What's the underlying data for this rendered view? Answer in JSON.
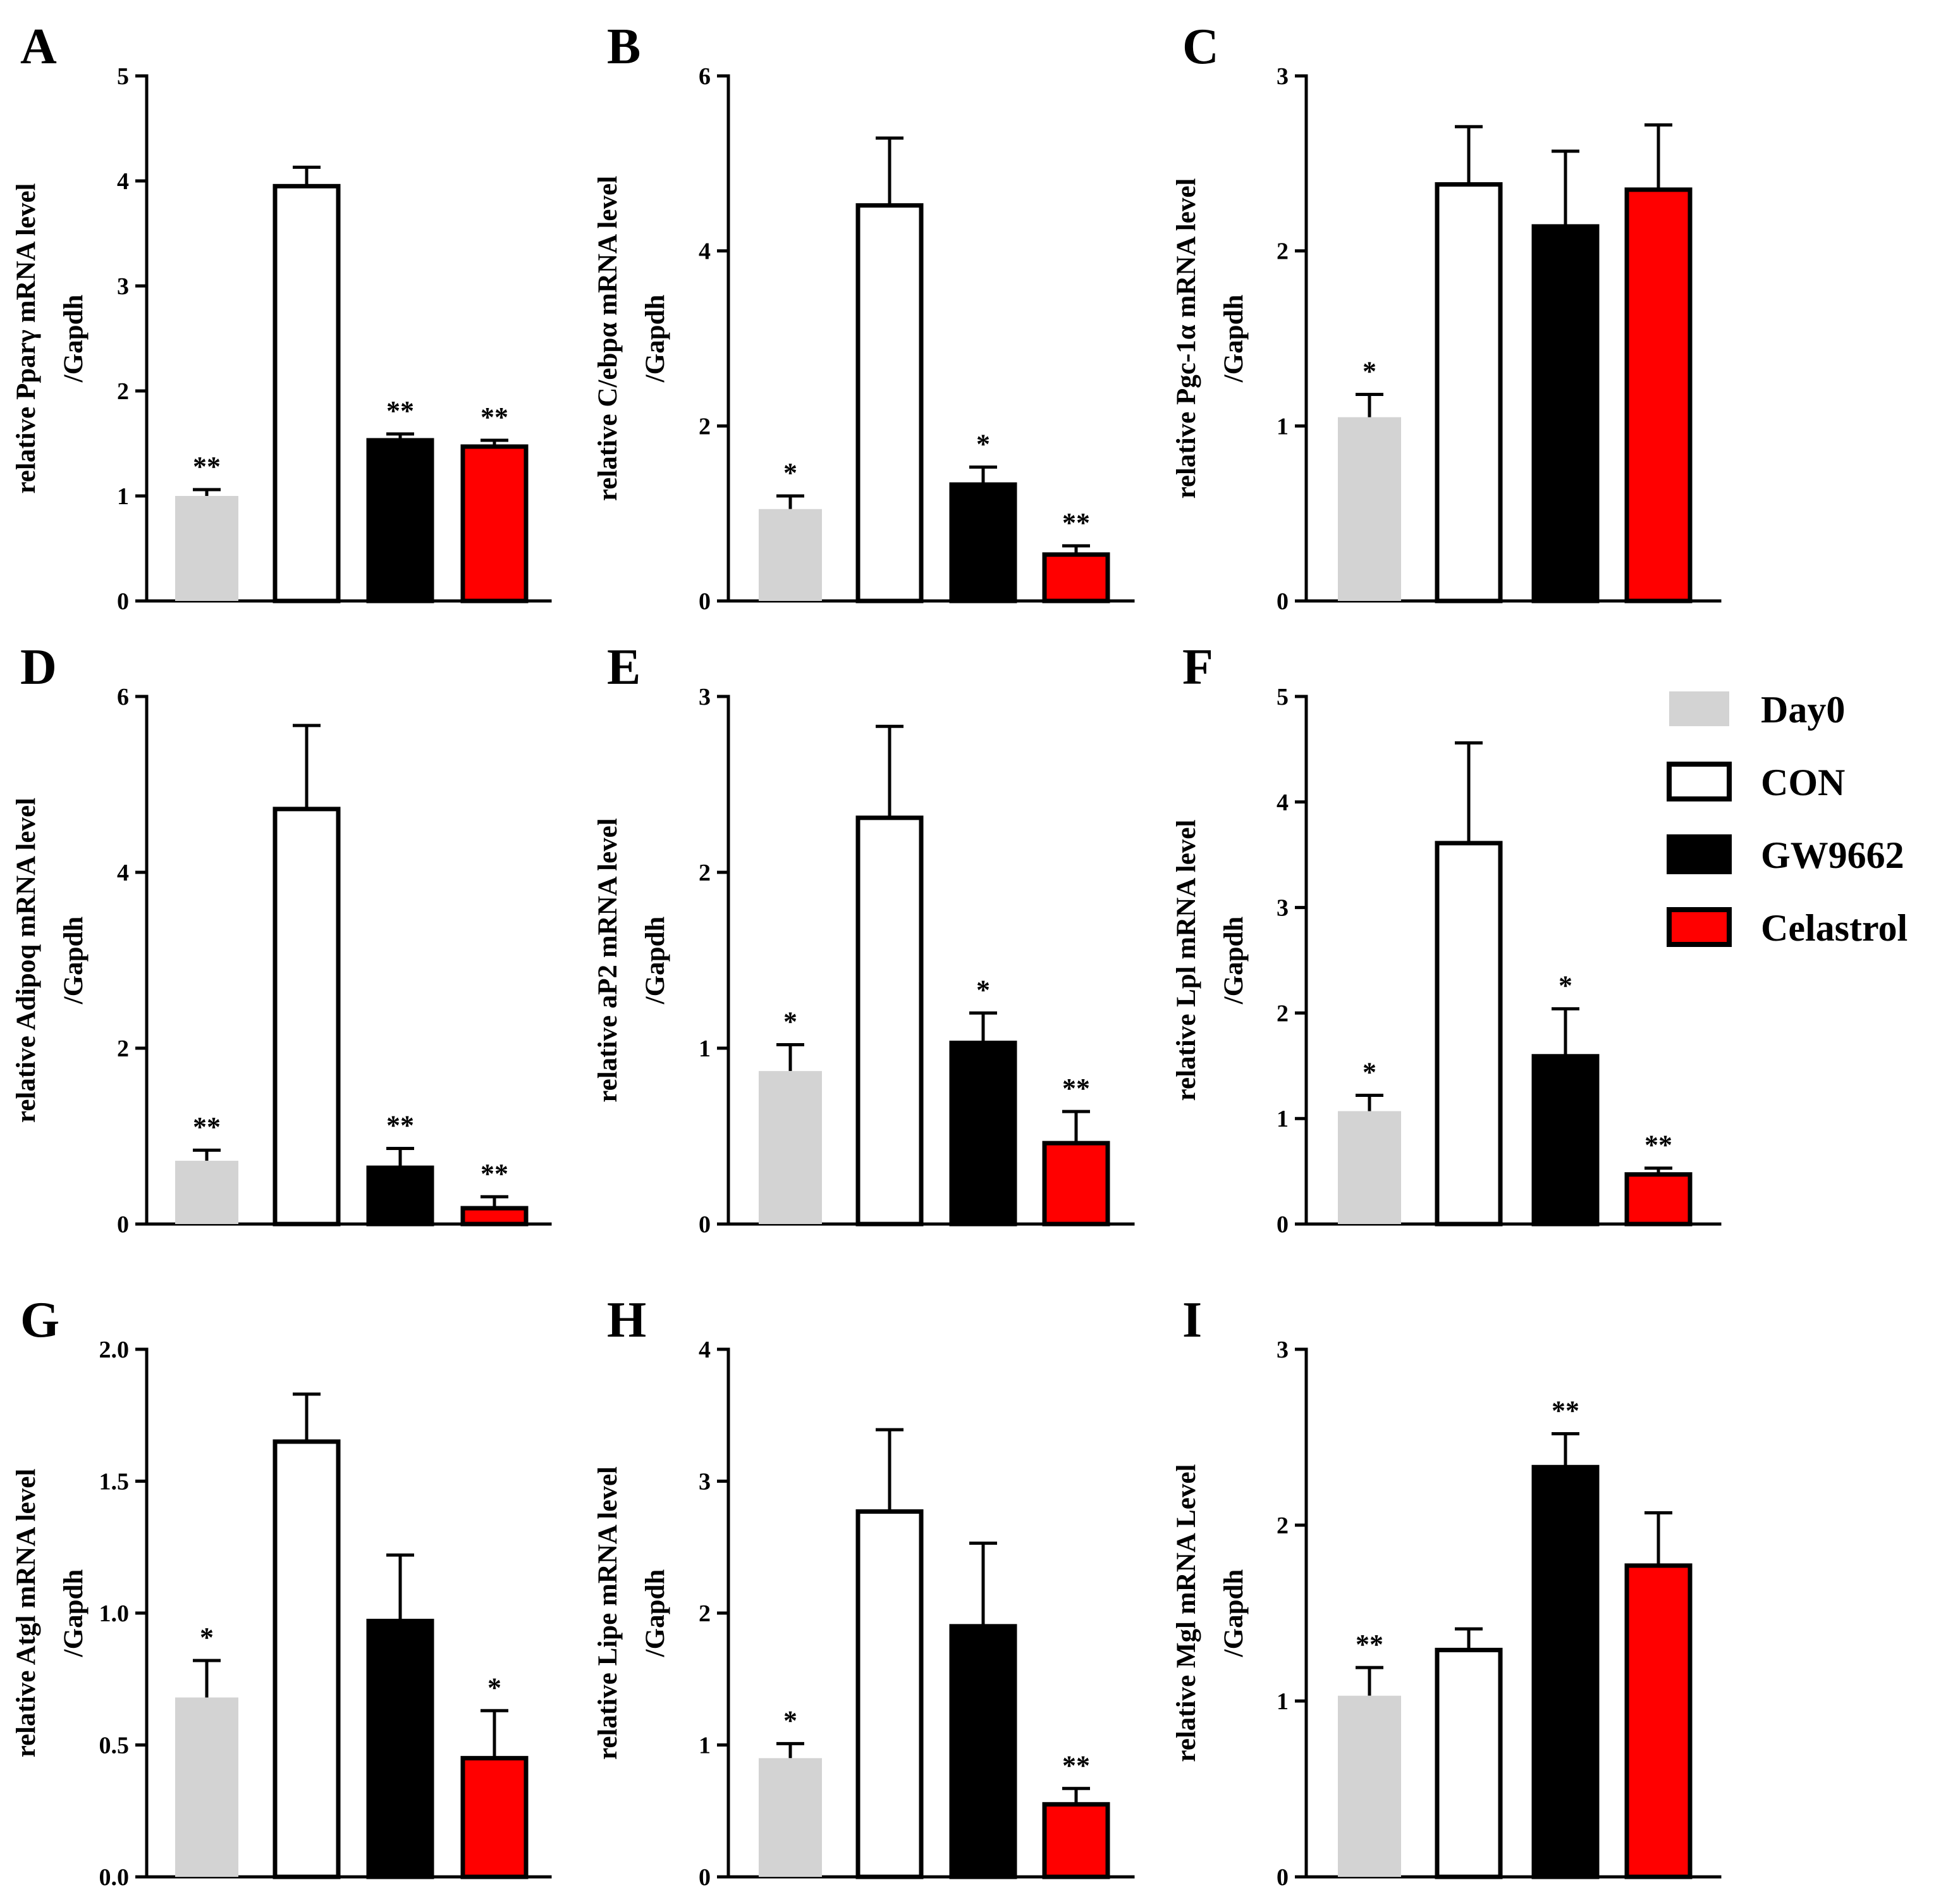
{
  "figure": {
    "legend": [
      {
        "label": "Day0",
        "color": "#d3d3d3"
      },
      {
        "label": "CON",
        "color": "#ffffff"
      },
      {
        "label": "GW9662",
        "color": "#000000"
      },
      {
        "label": "Celastrol",
        "color": "#ff0000"
      }
    ]
  },
  "chart_data": [
    {
      "panel": "A",
      "type": "bar",
      "ylabel_lines": [
        "relative Pparγ mRNA level",
        "/Gapdh"
      ],
      "categories": [
        "Day0",
        "CON",
        "GW9662",
        "Celastrol"
      ],
      "values": [
        1.0,
        3.95,
        1.53,
        1.47
      ],
      "errors": [
        0.06,
        0.18,
        0.06,
        0.06
      ],
      "significance": [
        "**",
        "",
        "**",
        "**"
      ],
      "ylim": [
        0,
        5
      ],
      "ticks": [
        0,
        1,
        2,
        3,
        4,
        5
      ],
      "tick_labels": [
        "0",
        "1",
        "2",
        "3",
        "4",
        "5"
      ]
    },
    {
      "panel": "B",
      "type": "bar",
      "ylabel_lines": [
        "relative C/ebpα mRNA level",
        "/Gapdh"
      ],
      "categories": [
        "Day0",
        "CON",
        "GW9662",
        "Celastrol"
      ],
      "values": [
        1.05,
        4.52,
        1.33,
        0.53
      ],
      "errors": [
        0.15,
        0.77,
        0.2,
        0.1
      ],
      "significance": [
        "*",
        "",
        "*",
        "**"
      ],
      "ylim": [
        0,
        6
      ],
      "ticks": [
        0,
        2,
        4,
        6
      ],
      "tick_labels": [
        "0",
        "2",
        "4",
        "6"
      ]
    },
    {
      "panel": "C",
      "type": "bar",
      "ylabel_lines": [
        "relative Pgc-1α mRNA level",
        "/Gapdh"
      ],
      "categories": [
        "Day0",
        "CON",
        "GW9662",
        "Celastrol"
      ],
      "values": [
        1.05,
        2.38,
        2.14,
        2.35
      ],
      "errors": [
        0.13,
        0.33,
        0.43,
        0.37
      ],
      "significance": [
        "*",
        "",
        "",
        ""
      ],
      "ylim": [
        0,
        3
      ],
      "ticks": [
        0,
        1,
        2,
        3
      ],
      "tick_labels": [
        "0",
        "1",
        "2",
        "3"
      ]
    },
    {
      "panel": "D",
      "type": "bar",
      "ylabel_lines": [
        "relative Adipoq mRNA level",
        "/Gapdh"
      ],
      "categories": [
        "Day0",
        "CON",
        "GW9662",
        "Celastrol"
      ],
      "values": [
        0.72,
        4.72,
        0.64,
        0.18
      ],
      "errors": [
        0.12,
        0.95,
        0.22,
        0.13
      ],
      "significance": [
        "**",
        "",
        "**",
        "**"
      ],
      "ylim": [
        0,
        6
      ],
      "ticks": [
        0,
        2,
        4,
        6
      ],
      "tick_labels": [
        "0",
        "2",
        "4",
        "6"
      ]
    },
    {
      "panel": "E",
      "type": "bar",
      "ylabel_lines": [
        "relative aP2 mRNA level",
        "/Gapdh"
      ],
      "categories": [
        "Day0",
        "CON",
        "GW9662",
        "Celastrol"
      ],
      "values": [
        0.87,
        2.31,
        1.03,
        0.46
      ],
      "errors": [
        0.15,
        0.52,
        0.17,
        0.18
      ],
      "significance": [
        "*",
        "",
        "*",
        "**"
      ],
      "ylim": [
        0,
        3
      ],
      "ticks": [
        0,
        1,
        2,
        3
      ],
      "tick_labels": [
        "0",
        "1",
        "2",
        "3"
      ]
    },
    {
      "panel": "F",
      "type": "bar",
      "ylabel_lines": [
        "relative Lpl mRNA level",
        "/Gapdh"
      ],
      "categories": [
        "Day0",
        "CON",
        "GW9662",
        "Celastrol"
      ],
      "values": [
        1.07,
        3.61,
        1.59,
        0.47
      ],
      "errors": [
        0.15,
        0.95,
        0.45,
        0.06
      ],
      "significance": [
        "*",
        "",
        "*",
        "**"
      ],
      "ylim": [
        0,
        5
      ],
      "ticks": [
        0,
        1,
        2,
        3,
        4,
        5
      ],
      "tick_labels": [
        "0",
        "1",
        "2",
        "3",
        "4",
        "5"
      ]
    },
    {
      "panel": "G",
      "type": "bar",
      "ylabel_lines": [
        "relative Atgl mRNA level",
        "/Gapdh"
      ],
      "categories": [
        "Day0",
        "CON",
        "GW9662",
        "Celastrol"
      ],
      "values": [
        0.68,
        1.65,
        0.97,
        0.45
      ],
      "errors": [
        0.14,
        0.18,
        0.25,
        0.18
      ],
      "significance": [
        "*",
        "",
        "",
        "*"
      ],
      "ylim": [
        0,
        2
      ],
      "ticks": [
        0,
        0.5,
        1,
        1.5,
        2
      ],
      "tick_labels": [
        "0.0",
        "0.5",
        "1.0",
        "1.5",
        "2.0"
      ]
    },
    {
      "panel": "H",
      "type": "bar",
      "ylabel_lines": [
        "relative Lipe mRNA level",
        "/Gapdh"
      ],
      "categories": [
        "Day0",
        "CON",
        "GW9662",
        "Celastrol"
      ],
      "values": [
        0.9,
        2.77,
        1.9,
        0.55
      ],
      "errors": [
        0.11,
        0.62,
        0.63,
        0.12
      ],
      "significance": [
        "*",
        "",
        "",
        "**"
      ],
      "ylim": [
        0,
        4
      ],
      "ticks": [
        0,
        1,
        2,
        3,
        4
      ],
      "tick_labels": [
        "0",
        "1",
        "2",
        "3",
        "4"
      ]
    },
    {
      "panel": "I",
      "type": "bar",
      "ylabel_lines": [
        "relative Mgl mRNA Level",
        "/Gapdh"
      ],
      "categories": [
        "Day0",
        "CON",
        "GW9662",
        "Celastrol"
      ],
      "values": [
        1.03,
        1.29,
        2.33,
        1.77
      ],
      "errors": [
        0.16,
        0.12,
        0.19,
        0.3
      ],
      "significance": [
        "**",
        "",
        "**",
        ""
      ],
      "ylim": [
        0,
        3
      ],
      "ticks": [
        0,
        1,
        2,
        3
      ],
      "tick_labels": [
        "0",
        "1",
        "2",
        "3"
      ]
    }
  ]
}
